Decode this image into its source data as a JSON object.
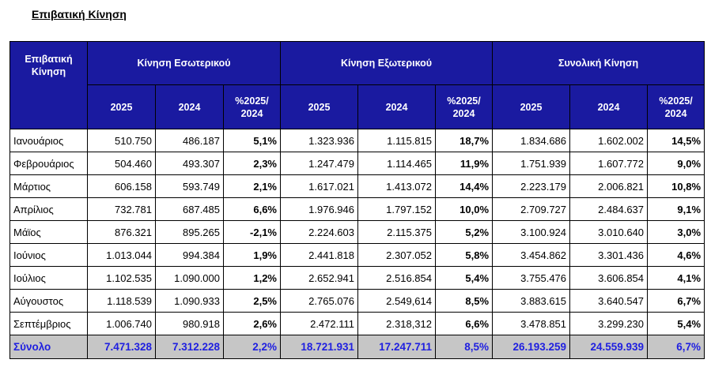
{
  "title": "Επιβατική Κίνηση",
  "headers": {
    "row_label": "Επιβατική Κίνηση",
    "groups": [
      "Κίνηση Εσωτερικού",
      "Κίνηση Εξωτερικού",
      "Συνολική Κίνηση"
    ],
    "sub": [
      "2025",
      "2024",
      "%2025/ 2024"
    ]
  },
  "rows": [
    {
      "month": "Ιανουάριος",
      "cells": [
        "510.750",
        "486.187",
        "5,1%",
        "1.323.936",
        "1.115.815",
        "18,7%",
        "1.834.686",
        "1.602.002",
        "14,5%"
      ]
    },
    {
      "month": "Φεβρουάριος",
      "cells": [
        "504.460",
        "493.307",
        "2,3%",
        "1.247.479",
        "1.114.465",
        "11,9%",
        "1.751.939",
        "1.607.772",
        "9,0%"
      ]
    },
    {
      "month": "Μάρτιος",
      "cells": [
        "606.158",
        "593.749",
        "2,1%",
        "1.617.021",
        "1.413.072",
        "14,4%",
        "2.223.179",
        "2.006.821",
        "10,8%"
      ]
    },
    {
      "month": "Απρίλιος",
      "cells": [
        "732.781",
        "687.485",
        "6,6%",
        "1.976.946",
        "1.797.152",
        "10,0%",
        "2.709.727",
        "2.484.637",
        "9,1%"
      ]
    },
    {
      "month": "Μάϊος",
      "cells": [
        "876.321",
        "895.265",
        "-2,1%",
        "2.224.603",
        "2.115.375",
        "5,2%",
        "3.100.924",
        "3.010.640",
        "3,0%"
      ]
    },
    {
      "month": "Ιούνιος",
      "cells": [
        "1.013.044",
        "994.384",
        "1,9%",
        "2.441.818",
        "2.307.052",
        "5,8%",
        "3.454.862",
        "3.301.436",
        "4,6%"
      ]
    },
    {
      "month": "Ιούλιος",
      "cells": [
        "1.102.535",
        "1.090.000",
        "1,2%",
        "2.652.941",
        "2.516.854",
        "5,4%",
        "3.755.476",
        "3.606.854",
        "4,1%"
      ]
    },
    {
      "month": "Αύγουστος",
      "cells": [
        "1.118.539",
        "1.090.933",
        "2,5%",
        "2.765.076",
        "2.549,614",
        "8,5%",
        "3.883.615",
        "3.640.547",
        "6,7%"
      ]
    },
    {
      "month": "Σεπτέμβριος",
      "cells": [
        "1.006.740",
        "980.918",
        "2,6%",
        "2.472.111",
        "2.318,312",
        "6,6%",
        "3.478.851",
        "3.299.230",
        "5,4%"
      ]
    }
  ],
  "total": {
    "month": "Σύνολο",
    "cells": [
      "7.471.328",
      "7.312.228",
      "2,2%",
      "18.721.931",
      "17.247.711",
      "8,5%",
      "26.193.259",
      "24.559.939",
      "6,7%"
    ]
  }
}
